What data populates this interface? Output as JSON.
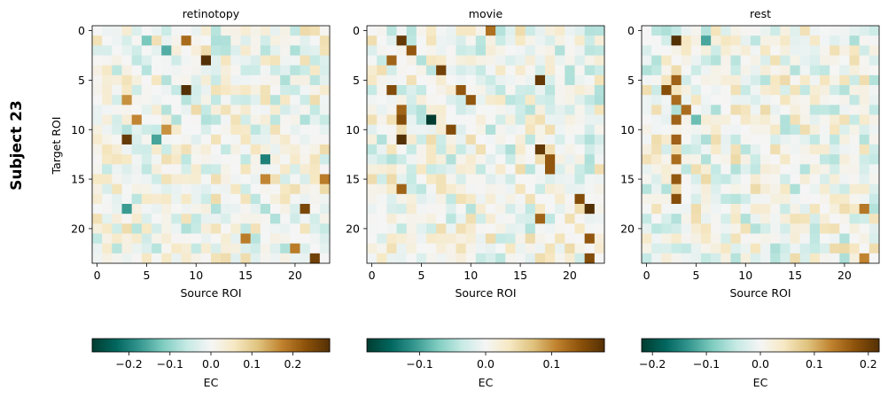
{
  "figure": {
    "suptitle": "Subject 23",
    "ylabel": "Target ROI",
    "xlabel": "Source ROI"
  },
  "chart_data": [
    {
      "type": "heatmap",
      "title": "retinotopy",
      "xlabel": "Source ROI",
      "ylabel": "Target ROI",
      "n": 24,
      "xticks": [
        0,
        5,
        10,
        15,
        20
      ],
      "yticks": [
        0,
        5,
        10,
        15,
        20
      ],
      "cmap": "BrBG_r",
      "colorbar": {
        "label": "EC",
        "vmin": -0.29,
        "vmax": 0.29,
        "ticks": [
          -0.2,
          -0.1,
          0.0,
          0.1,
          0.2
        ],
        "tick_labels": [
          "−0.2",
          "−0.1",
          "0.0",
          "0.1",
          "0.2"
        ]
      },
      "strong_cells": [
        {
          "row": 1,
          "col": 5,
          "value": -0.12
        },
        {
          "row": 1,
          "col": 9,
          "value": 0.2
        },
        {
          "row": 2,
          "col": 7,
          "value": -0.15
        },
        {
          "row": 3,
          "col": 11,
          "value": 0.29
        },
        {
          "row": 6,
          "col": 9,
          "value": 0.29
        },
        {
          "row": 7,
          "col": 3,
          "value": 0.16
        },
        {
          "row": 9,
          "col": 4,
          "value": 0.17
        },
        {
          "row": 10,
          "col": 7,
          "value": 0.16
        },
        {
          "row": 11,
          "col": 3,
          "value": 0.27
        },
        {
          "row": 11,
          "col": 6,
          "value": -0.16
        },
        {
          "row": 13,
          "col": 17,
          "value": -0.2
        },
        {
          "row": 15,
          "col": 17,
          "value": 0.17
        },
        {
          "row": 15,
          "col": 23,
          "value": 0.18
        },
        {
          "row": 18,
          "col": 3,
          "value": -0.17
        },
        {
          "row": 18,
          "col": 21,
          "value": 0.25
        },
        {
          "row": 21,
          "col": 15,
          "value": 0.18
        },
        {
          "row": 22,
          "col": 20,
          "value": 0.18
        },
        {
          "row": 23,
          "col": 22,
          "value": 0.26
        }
      ]
    },
    {
      "type": "heatmap",
      "title": "movie",
      "xlabel": "Source ROI",
      "ylabel": "",
      "n": 24,
      "xticks": [
        0,
        5,
        10,
        15,
        20
      ],
      "yticks": [
        0,
        5,
        10,
        15,
        20
      ],
      "cmap": "BrBG_r",
      "colorbar": {
        "label": "EC",
        "vmin": -0.18,
        "vmax": 0.18,
        "ticks": [
          -0.1,
          0.0,
          0.1
        ],
        "tick_labels": [
          "−0.1",
          "0.0",
          "0.1"
        ]
      },
      "strong_cells": [
        {
          "row": 0,
          "col": 12,
          "value": 0.12
        },
        {
          "row": 1,
          "col": 3,
          "value": 0.17
        },
        {
          "row": 2,
          "col": 4,
          "value": 0.14
        },
        {
          "row": 3,
          "col": 2,
          "value": 0.13
        },
        {
          "row": 4,
          "col": 7,
          "value": 0.16
        },
        {
          "row": 5,
          "col": 17,
          "value": 0.17
        },
        {
          "row": 6,
          "col": 2,
          "value": 0.15
        },
        {
          "row": 6,
          "col": 9,
          "value": 0.14
        },
        {
          "row": 7,
          "col": 10,
          "value": 0.14
        },
        {
          "row": 8,
          "col": 3,
          "value": 0.13
        },
        {
          "row": 9,
          "col": 6,
          "value": -0.18
        },
        {
          "row": 9,
          "col": 3,
          "value": 0.15
        },
        {
          "row": 10,
          "col": 8,
          "value": 0.15
        },
        {
          "row": 11,
          "col": 3,
          "value": 0.18
        },
        {
          "row": 12,
          "col": 17,
          "value": 0.17
        },
        {
          "row": 13,
          "col": 18,
          "value": 0.14
        },
        {
          "row": 14,
          "col": 18,
          "value": 0.14
        },
        {
          "row": 16,
          "col": 3,
          "value": 0.13
        },
        {
          "row": 17,
          "col": 21,
          "value": 0.15
        },
        {
          "row": 18,
          "col": 22,
          "value": 0.18
        },
        {
          "row": 19,
          "col": 17,
          "value": 0.13
        },
        {
          "row": 21,
          "col": 22,
          "value": 0.14
        },
        {
          "row": 23,
          "col": 22,
          "value": 0.15
        }
      ]
    },
    {
      "type": "heatmap",
      "title": "rest",
      "xlabel": "Source ROI",
      "ylabel": "",
      "n": 24,
      "xticks": [
        0,
        5,
        10,
        15,
        20
      ],
      "yticks": [
        0,
        5,
        10,
        15,
        20
      ],
      "cmap": "BrBG_r",
      "colorbar": {
        "label": "EC",
        "vmin": -0.22,
        "vmax": 0.22,
        "ticks": [
          -0.2,
          -0.1,
          0.0,
          0.1,
          0.2
        ],
        "tick_labels": [
          "−0.2",
          "−0.1",
          "0.0",
          "0.1",
          "0.2"
        ]
      },
      "strong_cells": [
        {
          "row": 1,
          "col": 3,
          "value": 0.22
        },
        {
          "row": 1,
          "col": 6,
          "value": -0.12
        },
        {
          "row": 5,
          "col": 3,
          "value": 0.16
        },
        {
          "row": 6,
          "col": 2,
          "value": 0.18
        },
        {
          "row": 7,
          "col": 3,
          "value": 0.15
        },
        {
          "row": 8,
          "col": 4,
          "value": 0.15
        },
        {
          "row": 9,
          "col": 3,
          "value": 0.16
        },
        {
          "row": 9,
          "col": 5,
          "value": -0.1
        },
        {
          "row": 11,
          "col": 3,
          "value": 0.16
        },
        {
          "row": 13,
          "col": 3,
          "value": 0.15
        },
        {
          "row": 15,
          "col": 3,
          "value": 0.17
        },
        {
          "row": 17,
          "col": 3,
          "value": 0.18
        },
        {
          "row": 18,
          "col": 22,
          "value": 0.14
        },
        {
          "row": 23,
          "col": 22,
          "value": 0.13
        }
      ]
    }
  ]
}
